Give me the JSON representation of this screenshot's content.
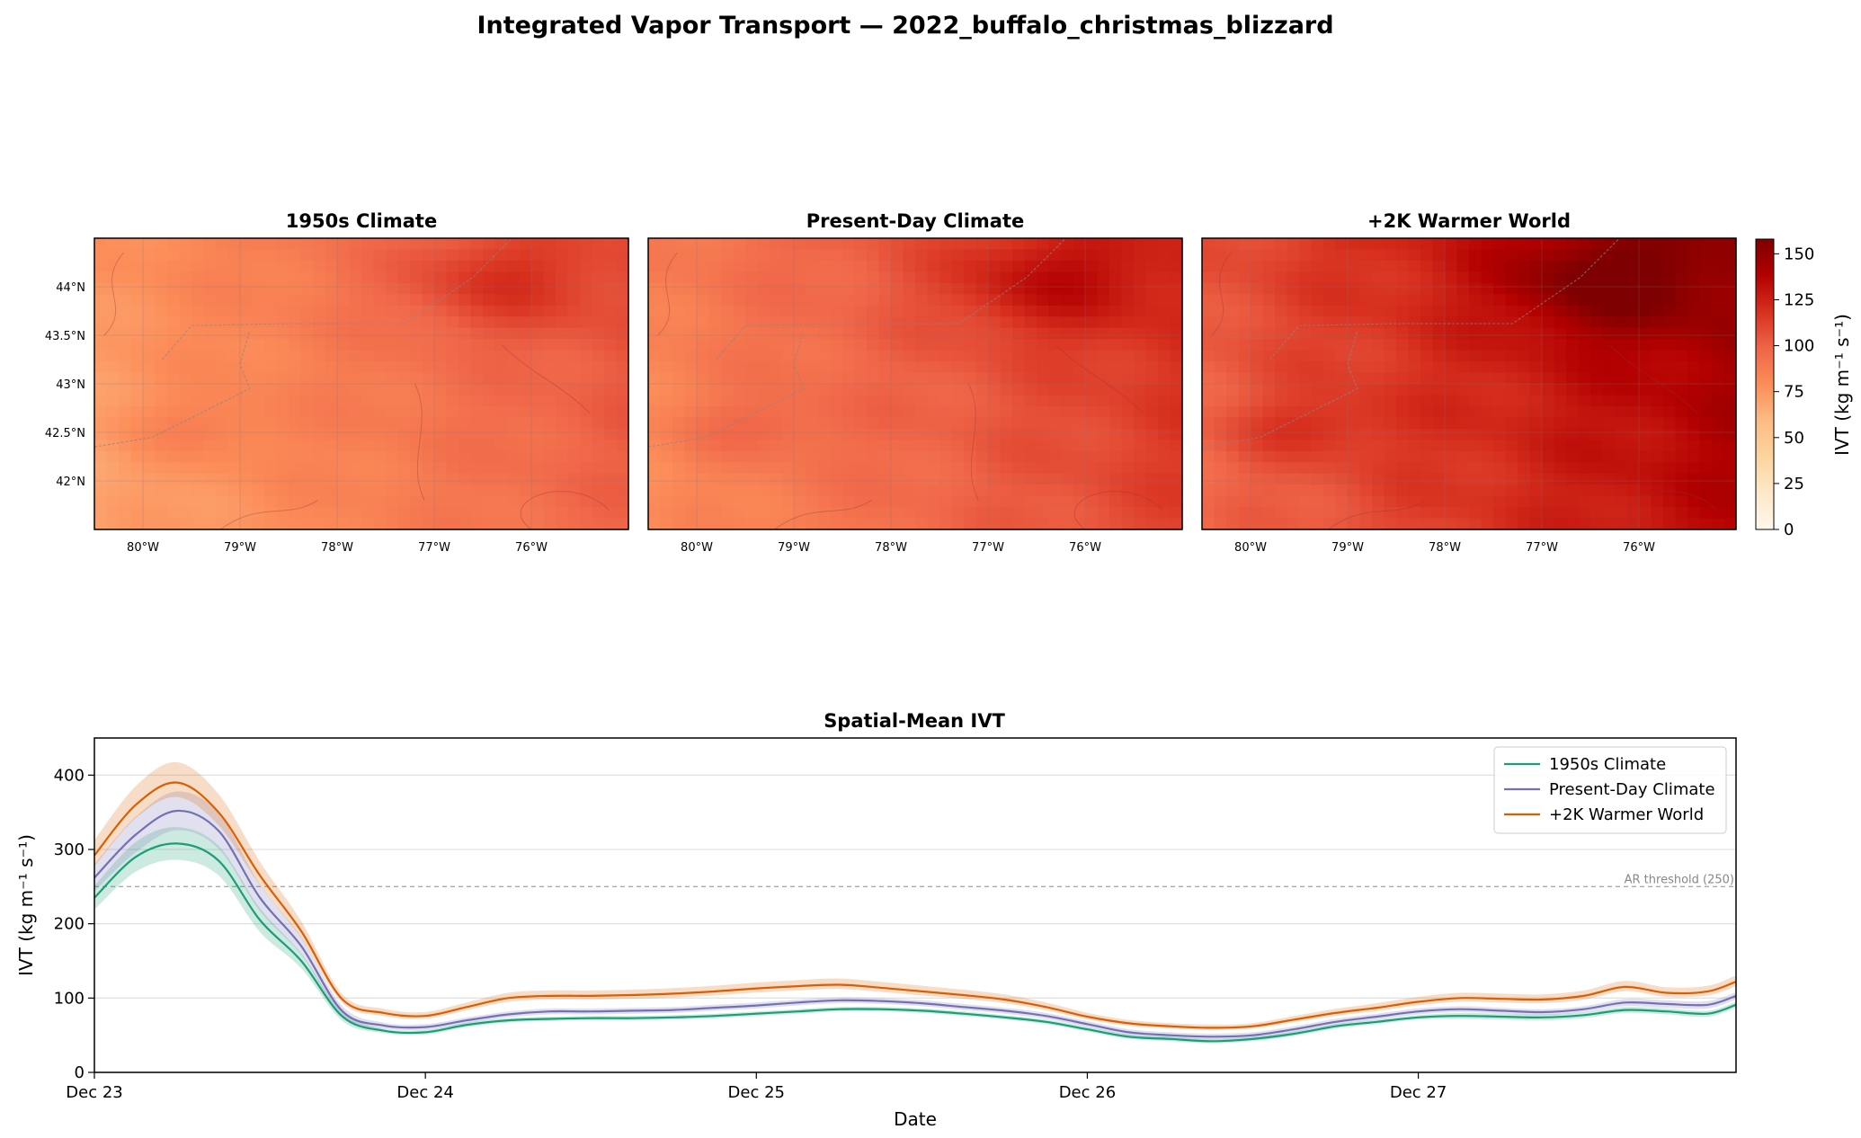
{
  "figure": {
    "title": "Integrated Vapor Transport — 2022_buffalo_christmas_blizzard"
  },
  "maps": {
    "lon_ticks": [
      "80°W",
      "79°W",
      "78°W",
      "77°W",
      "76°W"
    ],
    "lat_ticks": [
      "44°N",
      "43.5°N",
      "43°N",
      "42.5°N",
      "42°N"
    ],
    "lon_tick_values": [
      -80,
      -79,
      -78,
      -77,
      -76
    ],
    "lat_tick_values": [
      44,
      43.5,
      43,
      42.5,
      42
    ],
    "lon_range": [
      -80.5,
      -75
    ],
    "lat_range": [
      41.5,
      44.5
    ],
    "cmap": "OrRd",
    "panels": [
      {
        "title": "1950s Climate",
        "base_ivt": 88
      },
      {
        "title": "Present-Day Climate",
        "base_ivt": 100
      },
      {
        "title": "+2K Warmer World",
        "base_ivt": 122
      }
    ]
  },
  "colorbar": {
    "label": "IVT (kg m⁻¹ s⁻¹)",
    "ticks": [
      "0",
      "25",
      "50",
      "75",
      "100",
      "125",
      "150"
    ],
    "tick_values": [
      0,
      25,
      50,
      75,
      100,
      125,
      150
    ],
    "range": [
      0,
      158
    ]
  },
  "chart_data": {
    "type": "line",
    "title": "Spatial-Mean IVT",
    "xlabel": "Date",
    "ylabel": "IVT (kg m⁻¹ s⁻¹)",
    "ylim": [
      0,
      450
    ],
    "yticks": [
      0,
      100,
      200,
      300,
      400
    ],
    "xlim_days": [
      0,
      4.96
    ],
    "xticks": [
      {
        "label": "Dec 23",
        "day": 0
      },
      {
        "label": "Dec 24",
        "day": 1
      },
      {
        "label": "Dec 25",
        "day": 2
      },
      {
        "label": "Dec 26",
        "day": 3
      },
      {
        "label": "Dec 27",
        "day": 4
      }
    ],
    "grid": "y",
    "legend": "top-right",
    "threshold": {
      "value": 250,
      "label": "AR threshold (250)"
    },
    "x_days": [
      0,
      0.125,
      0.25,
      0.375,
      0.5,
      0.625,
      0.75,
      0.875,
      1.0,
      1.125,
      1.25,
      1.375,
      1.5,
      1.625,
      1.75,
      1.875,
      2.0,
      2.125,
      2.25,
      2.375,
      2.5,
      2.625,
      2.75,
      2.875,
      3.0,
      3.125,
      3.25,
      3.375,
      3.5,
      3.625,
      3.75,
      3.875,
      4.0,
      4.125,
      4.25,
      4.375,
      4.5,
      4.625,
      4.75,
      4.875,
      4.96
    ],
    "series": [
      {
        "name": "1950s Climate",
        "color": "#1b9e77",
        "values": [
          235,
          290,
          308,
          285,
          205,
          150,
          75,
          56,
          54,
          64,
          70,
          72,
          73,
          73,
          74,
          76,
          79,
          82,
          85,
          85,
          83,
          79,
          74,
          68,
          58,
          48,
          45,
          42,
          45,
          52,
          62,
          68,
          74,
          76,
          75,
          74,
          77,
          84,
          82,
          79,
          91
        ],
        "band": [
          16,
          20,
          22,
          20,
          16,
          10,
          6,
          3,
          3,
          3,
          3,
          3,
          3,
          3,
          3,
          3,
          3,
          3,
          3,
          3,
          3,
          3,
          3,
          3,
          3,
          3,
          3,
          3,
          3,
          3,
          3,
          3,
          3,
          4,
          4,
          4,
          4,
          4,
          4,
          4,
          4
        ]
      },
      {
        "name": "Present-Day Climate",
        "color": "#7570b3",
        "values": [
          262,
          320,
          352,
          325,
          235,
          170,
          82,
          63,
          61,
          70,
          78,
          82,
          82,
          83,
          84,
          87,
          90,
          94,
          97,
          96,
          93,
          88,
          83,
          76,
          65,
          54,
          50,
          48,
          50,
          58,
          68,
          75,
          82,
          85,
          83,
          81,
          85,
          94,
          92,
          91,
          103
        ],
        "band": [
          18,
          24,
          26,
          24,
          18,
          12,
          7,
          4,
          4,
          4,
          4,
          4,
          4,
          4,
          4,
          4,
          4,
          4,
          4,
          4,
          4,
          4,
          4,
          4,
          4,
          4,
          4,
          4,
          4,
          4,
          4,
          4,
          4,
          4,
          4,
          4,
          4,
          5,
          5,
          5,
          5
        ]
      },
      {
        "name": "+2K Warmer World",
        "color": "#d95f02",
        "values": [
          292,
          360,
          390,
          350,
          265,
          190,
          98,
          80,
          76,
          88,
          100,
          103,
          103,
          104,
          106,
          109,
          113,
          116,
          118,
          114,
          109,
          104,
          98,
          88,
          75,
          66,
          62,
          60,
          62,
          71,
          80,
          87,
          95,
          100,
          99,
          98,
          103,
          115,
          107,
          109,
          122
        ]
      }
    ]
  }
}
